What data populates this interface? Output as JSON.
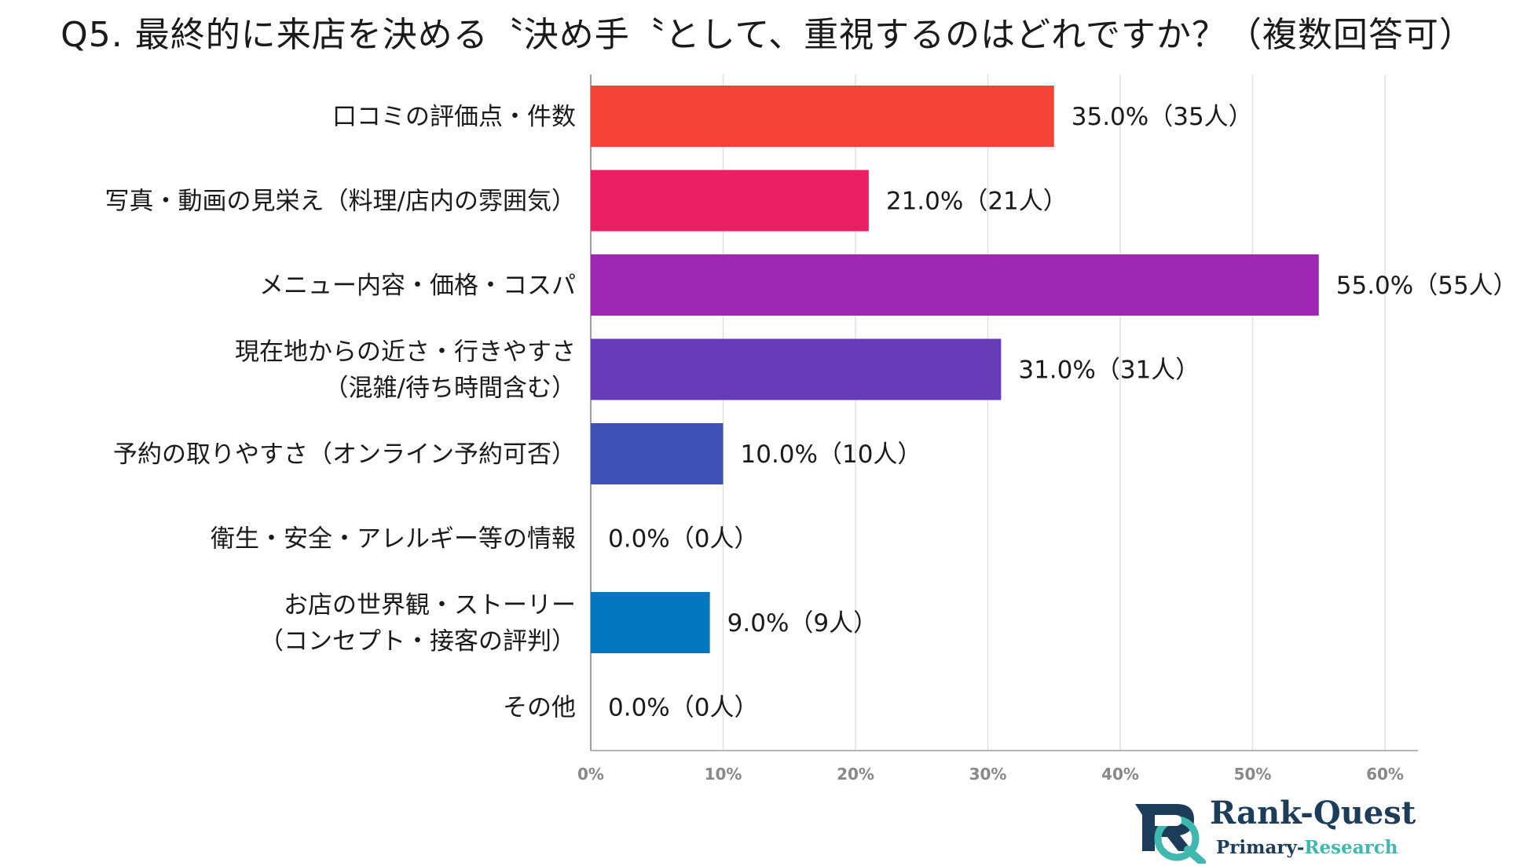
{
  "title": "Q5. 最終的に来店を決める〝決め手〝として、重視するのはどれですか？（複数回答可）",
  "chart_data": {
    "type": "bar",
    "orientation": "horizontal",
    "title": "Q5. 最終的に来店を決める〝決め手〝として、重視するのはどれですか？（複数回答可）",
    "categories": [
      [
        "口コミの評価点・件数"
      ],
      [
        "写真・動画の見栄え（料理/店内の雰囲気）"
      ],
      [
        "メニュー内容・価格・コスパ"
      ],
      [
        "現在地からの近さ・行きやすさ",
        "（混雑/待ち時間含む）"
      ],
      [
        "予約の取りやすさ（オンライン予約可否）"
      ],
      [
        "衛生・安全・アレルギー等の情報"
      ],
      [
        "お店の世界観・ストーリー",
        "（コンセプト・接客の評判）"
      ],
      [
        "その他"
      ]
    ],
    "values": [
      35.0,
      21.0,
      55.0,
      31.0,
      10.0,
      0.0,
      9.0,
      0.0
    ],
    "value_labels": [
      "35.0%（35人）",
      "21.0%（21人）",
      "55.0%（55人）",
      "31.0%（31人）",
      "10.0%（10人）",
      "0.0%（0人）",
      "9.0%（9人）",
      "0.0%（0人）"
    ],
    "colors": [
      "#f44336",
      "#e91e63",
      "#9c27b0",
      "#673ab7",
      "#3f51b5",
      "#2196f3",
      "#0277bd",
      "#00897b"
    ],
    "x_ticks": [
      "0%",
      "10%",
      "20%",
      "30%",
      "40%",
      "50%",
      "60%"
    ],
    "xlim": [
      0,
      62.5
    ],
    "grid": true,
    "legend": "none"
  },
  "logo": {
    "name": "Rank-Quest",
    "subtitle_part1": "Primary-",
    "subtitle_part2": "Research"
  }
}
